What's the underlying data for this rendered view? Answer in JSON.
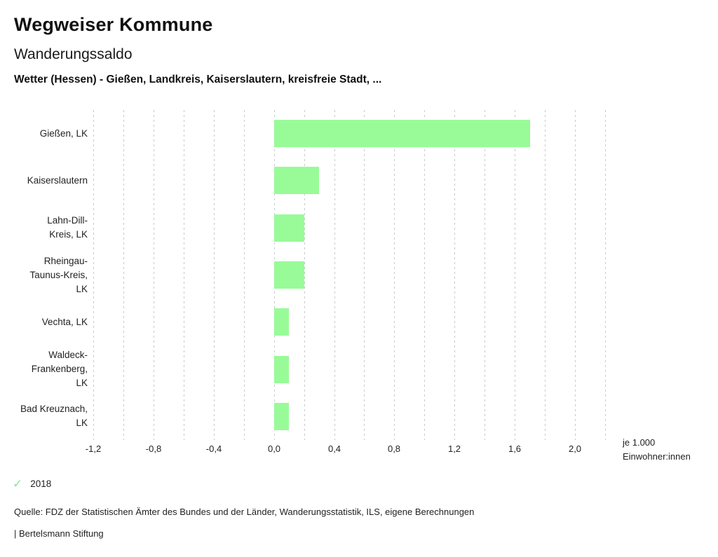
{
  "header": {
    "title": "Wegweiser Kommune",
    "subtitle": "Wanderungssaldo",
    "filter_line": "Wetter (Hessen) - Gießen, Landkreis, Kaiserslautern, kreisfreie Stadt, ..."
  },
  "chart_data": {
    "type": "bar",
    "orientation": "horizontal",
    "title": "Wanderungssaldo",
    "xlabel": "je 1.000 Einwohner:innen",
    "ylabel": "",
    "categories": [
      "Gießen, LK",
      "Kaiserslautern",
      "Lahn-Dill-Kreis, LK",
      "Rheingau-Taunus-Kreis, LK",
      "Vechta, LK",
      "Waldeck-Frankenberg, LK",
      "Bad Kreuznach, LK"
    ],
    "category_lines": [
      [
        "Gießen, LK"
      ],
      [
        "Kaiserslautern"
      ],
      [
        "Lahn-Dill-",
        "Kreis, LK"
      ],
      [
        "Rheingau-",
        "Taunus-Kreis,",
        "LK"
      ],
      [
        "Vechta, LK"
      ],
      [
        "Waldeck-",
        "Frankenberg,",
        "LK"
      ],
      [
        "Bad Kreuznach,",
        "LK"
      ]
    ],
    "series": [
      {
        "name": "2018",
        "values": [
          1.7,
          0.3,
          0.2,
          0.2,
          0.1,
          0.1,
          0.1
        ]
      }
    ],
    "xlim": [
      -1.2,
      2.2
    ],
    "grid_step": 0.2,
    "grid_on": true,
    "tick_values": [
      -1.2,
      -0.8,
      -0.4,
      0.0,
      0.4,
      0.8,
      1.2,
      1.6,
      2.0
    ],
    "tick_labels": [
      "-1,2",
      "-0,8",
      "-0,4",
      "0,0",
      "0,4",
      "0,8",
      "1,2",
      "1,6",
      "2,0"
    ],
    "axis_unit_lines": [
      "je 1.000",
      "Einwohner:innen"
    ],
    "bar_color": "#98fb98",
    "grid_color": "#c9c9c9",
    "legend_position": "bottom-left"
  },
  "legend": {
    "items": [
      {
        "label": "2018",
        "checked": true,
        "check_icon": "checkmark-icon",
        "color": "#8fe58f"
      }
    ]
  },
  "footer": {
    "source": "Quelle: FDZ der Statistischen Ämter des Bundes und der Länder, Wanderungsstatistik, ILS, eigene Berechnungen",
    "branding": "| Bertelsmann Stiftung"
  }
}
